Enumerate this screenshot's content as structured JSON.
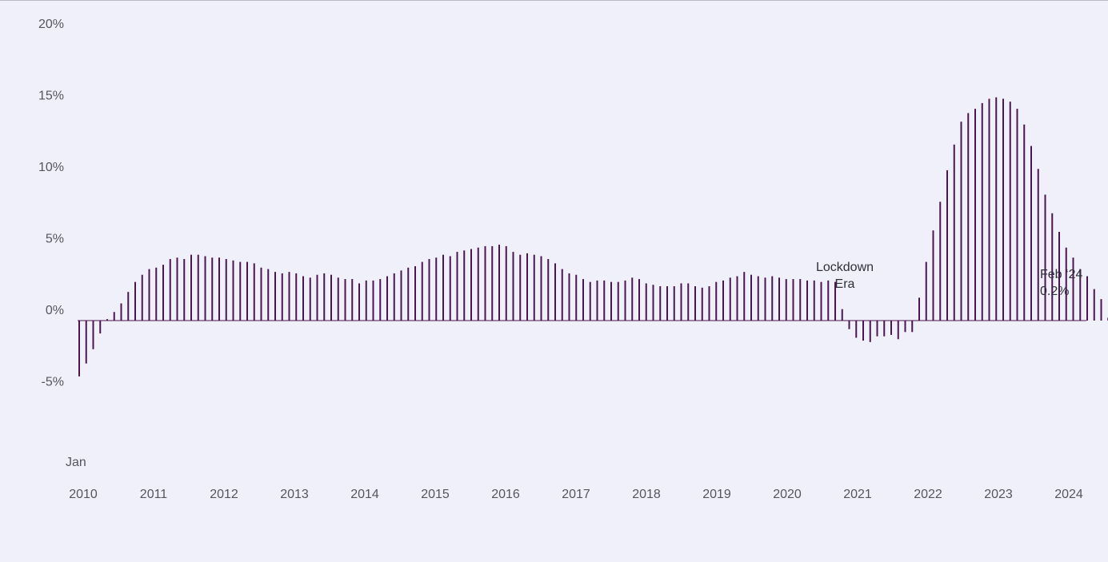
{
  "chart_data": {
    "type": "bar",
    "title": "",
    "xlabel": "",
    "ylabel": "",
    "ylim": [
      -7.5,
      20
    ],
    "yticks": [
      {
        "value": 20,
        "label": "20%"
      },
      {
        "value": 15,
        "label": "15%"
      },
      {
        "value": 10,
        "label": "10%"
      },
      {
        "value": 5,
        "label": "5%"
      },
      {
        "value": 0,
        "label": "0%"
      },
      {
        "value": -5,
        "label": "-5%"
      }
    ],
    "x_start_label": "Jan",
    "x_tick_labels": [
      "2010",
      "2011",
      "2012",
      "2013",
      "2014",
      "2015",
      "2016",
      "2017",
      "2018",
      "2019",
      "2020",
      "2021",
      "2022",
      "2023",
      "2024"
    ],
    "baseline": 0,
    "bar_color": "#4b154f",
    "values": [
      -3.9,
      -3.0,
      -2.0,
      -0.9,
      0.1,
      0.6,
      1.2,
      2.0,
      2.7,
      3.2,
      3.6,
      3.7,
      3.9,
      4.3,
      4.4,
      4.3,
      4.6,
      4.6,
      4.5,
      4.4,
      4.4,
      4.3,
      4.2,
      4.1,
      4.1,
      4.0,
      3.7,
      3.6,
      3.4,
      3.3,
      3.4,
      3.3,
      3.1,
      3.0,
      3.2,
      3.3,
      3.2,
      3.0,
      2.9,
      2.9,
      2.6,
      2.8,
      2.8,
      2.9,
      3.1,
      3.3,
      3.5,
      3.7,
      3.8,
      4.1,
      4.3,
      4.4,
      4.6,
      4.5,
      4.8,
      4.9,
      5.0,
      5.1,
      5.2,
      5.2,
      5.3,
      5.2,
      4.8,
      4.6,
      4.7,
      4.6,
      4.5,
      4.3,
      4.0,
      3.6,
      3.3,
      3.2,
      2.9,
      2.7,
      2.8,
      2.8,
      2.7,
      2.7,
      2.8,
      3.0,
      2.9,
      2.6,
      2.5,
      2.4,
      2.4,
      2.4,
      2.6,
      2.6,
      2.4,
      2.3,
      2.4,
      2.7,
      2.8,
      3.0,
      3.1,
      3.4,
      3.2,
      3.1,
      3.0,
      3.1,
      3.0,
      2.9,
      2.9,
      2.9,
      2.8,
      2.8,
      2.7,
      2.8,
      2.7,
      0.8,
      -0.6,
      -1.2,
      -1.4,
      -1.5,
      -1.1,
      -1.1,
      -1.0,
      -1.3,
      -0.8,
      -0.8,
      1.6,
      4.1,
      6.3,
      8.3,
      10.5,
      12.3,
      13.9,
      14.5,
      14.8,
      15.2,
      15.5,
      15.6,
      15.5,
      15.3,
      14.8,
      13.7,
      12.2,
      10.6,
      8.8,
      7.5,
      6.2,
      5.1,
      4.4,
      3.6,
      3.1,
      2.2,
      1.5,
      0.2,
      0.3,
      0.1,
      0.1,
      0.1,
      0.2,
      0.1,
      0.1,
      0.0,
      0.3,
      0.2
    ],
    "annotations": [
      {
        "lines": [
          "Lockdown",
          "Era"
        ],
        "anchor_month": 127
      },
      {
        "lines": [
          "Feb ‘24",
          "0.2%"
        ],
        "anchor_month": 169
      }
    ]
  }
}
